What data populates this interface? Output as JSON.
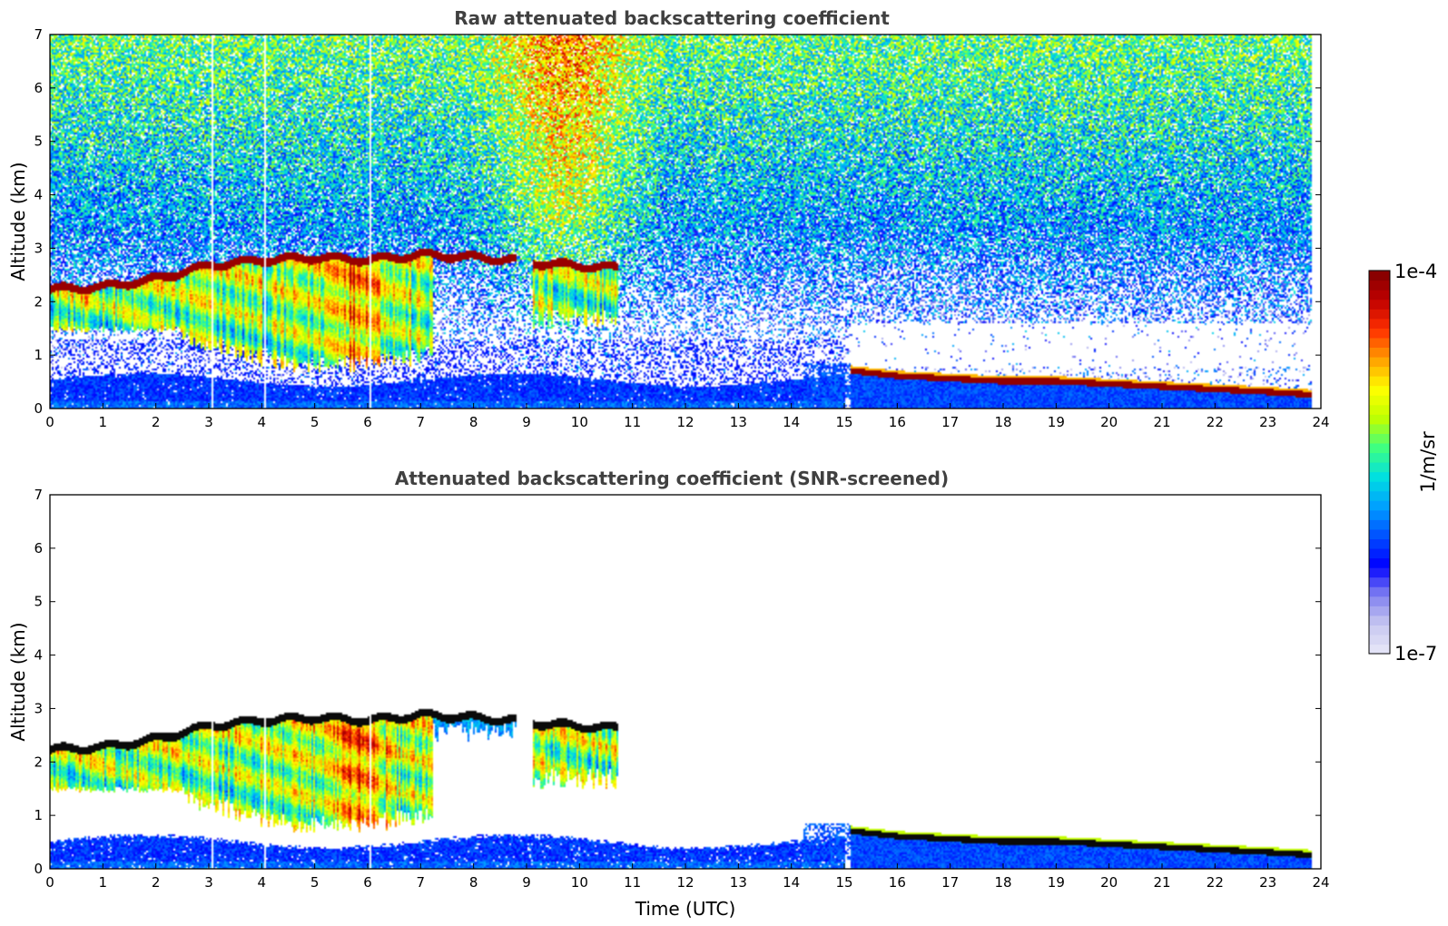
{
  "chart_data": [
    {
      "type": "heatmap",
      "title": "Raw attenuated backscattering coefficient",
      "ylabel": "Altitude (km)",
      "xlabel": "",
      "xlim": [
        0,
        24
      ],
      "ylim": [
        0,
        7
      ],
      "xticks": [
        "0",
        "1",
        "2",
        "3",
        "4",
        "5",
        "6",
        "7",
        "8",
        "9",
        "10",
        "11",
        "12",
        "13",
        "14",
        "15",
        "16",
        "17",
        "18",
        "19",
        "20",
        "21",
        "22",
        "23",
        "24"
      ],
      "yticks": [
        "0",
        "1",
        "2",
        "3",
        "4",
        "5",
        "6",
        "7"
      ],
      "screened": false,
      "features": {
        "cloud_top_km": [
          [
            0,
            2.3
          ],
          [
            1,
            2.35
          ],
          [
            2,
            2.5
          ],
          [
            3,
            2.75
          ],
          [
            4,
            2.85
          ],
          [
            5,
            2.9
          ],
          [
            6,
            2.85
          ],
          [
            7,
            2.95
          ],
          [
            8,
            2.9
          ],
          [
            8.8,
            2.85
          ]
        ],
        "cloud_top_segment2_km": [
          [
            9.1,
            2.8
          ],
          [
            10.7,
            2.7
          ]
        ],
        "low_layer_top_km": [
          [
            15.1,
            0.75
          ],
          [
            16,
            0.65
          ],
          [
            17,
            0.6
          ],
          [
            18,
            0.55
          ],
          [
            19,
            0.55
          ],
          [
            20,
            0.5
          ],
          [
            21,
            0.45
          ],
          [
            22,
            0.4
          ],
          [
            23,
            0.35
          ],
          [
            23.8,
            0.3
          ]
        ],
        "boundary_layer_top_km": 0.6,
        "data_end_hour": 23.8
      }
    },
    {
      "type": "heatmap",
      "title": "Attenuated backscattering coefficient (SNR-screened)",
      "ylabel": "Altitude (km)",
      "xlabel": "Time (UTC)",
      "xlim": [
        0,
        24
      ],
      "ylim": [
        0,
        7
      ],
      "xticks": [
        "0",
        "1",
        "2",
        "3",
        "4",
        "5",
        "6",
        "7",
        "8",
        "9",
        "10",
        "11",
        "12",
        "13",
        "14",
        "15",
        "16",
        "17",
        "18",
        "19",
        "20",
        "21",
        "22",
        "23",
        "24"
      ],
      "yticks": [
        "0",
        "1",
        "2",
        "3",
        "4",
        "5",
        "6",
        "7"
      ],
      "screened": true
    }
  ],
  "colorbar": {
    "min_label": "1e-7",
    "max_label": "1e-4",
    "label": "1/m/sr",
    "scale": "log",
    "colormap": [
      "#e8e8f8",
      "#c8c8f0",
      "#8080f0",
      "#0000ff",
      "#0050ff",
      "#00a0ff",
      "#00e0e0",
      "#40ff80",
      "#c0ff00",
      "#ffff00",
      "#ffa000",
      "#ff3000",
      "#c00000",
      "#800000"
    ]
  }
}
